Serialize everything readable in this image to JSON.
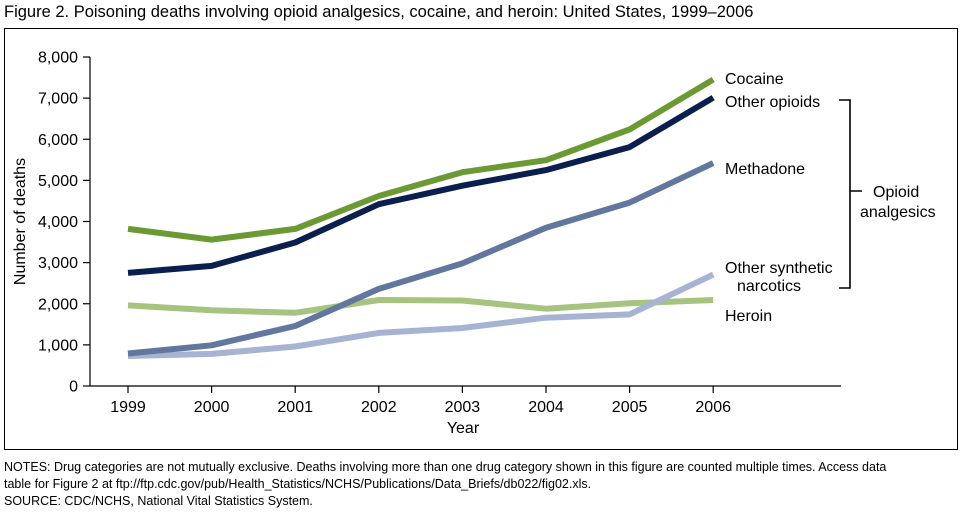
{
  "title": "Figure 2. Poisoning deaths involving opioid analgesics, cocaine, and heroin: United States, 1999–2006",
  "notes": {
    "line1": "NOTES: Drug categories are not mutually exclusive. Deaths involving more than one drug category shown in this figure are counted multiple times. Access data",
    "line2": "table for Figure 2 at ftp://ftp.cdc.gov/pub/Health_Statistics/NCHS/Publications/Data_Briefs/db022/fig02.xls.",
    "source": "SOURCE: CDC/NCHS, National Vital Statistics System."
  },
  "chart_data": {
    "type": "line",
    "title": "",
    "xlabel": "Year",
    "ylabel": "Number of deaths",
    "ylim": [
      0,
      8000
    ],
    "yticks": [
      "0",
      "1,000",
      "2,000",
      "3,000",
      "4,000",
      "5,000",
      "6,000",
      "7,000",
      "8,000"
    ],
    "ytick_values": [
      0,
      1000,
      2000,
      3000,
      4000,
      5000,
      6000,
      7000,
      8000
    ],
    "categories": [
      "1999",
      "2000",
      "2001",
      "2002",
      "2003",
      "2004",
      "2005",
      "2006"
    ],
    "grid": false,
    "series": [
      {
        "name": "Heroin",
        "color": "#a6c47f",
        "values": [
          1960,
          1840,
          1780,
          2090,
          2080,
          1880,
          2010,
          2090
        ]
      },
      {
        "name": "Other synthetic narcotics",
        "color": "#a7b3d3",
        "values": [
          730,
          780,
          960,
          1290,
          1410,
          1660,
          1740,
          2710
        ]
      },
      {
        "name": "Methadone",
        "color": "#62779e",
        "values": [
          790,
          990,
          1460,
          2360,
          2980,
          3850,
          4460,
          5420
        ]
      },
      {
        "name": "Other opioids",
        "color": "#0a1f4e",
        "values": [
          2750,
          2920,
          3490,
          4420,
          4870,
          5250,
          5810,
          7010
        ]
      },
      {
        "name": "Cocaine",
        "color": "#6b9a34",
        "values": [
          3820,
          3560,
          3820,
          4620,
          5200,
          5490,
          6240,
          7450
        ]
      }
    ],
    "legend": {
      "cocaine": "Cocaine",
      "other_opioids": "Other opioids",
      "methadone": "Methadone",
      "other_synthetic_line1": "Other synthetic",
      "other_synthetic_line2": "narcotics",
      "heroin": "Heroin",
      "group_line1": "Opioid",
      "group_line2": "analgesics"
    }
  }
}
